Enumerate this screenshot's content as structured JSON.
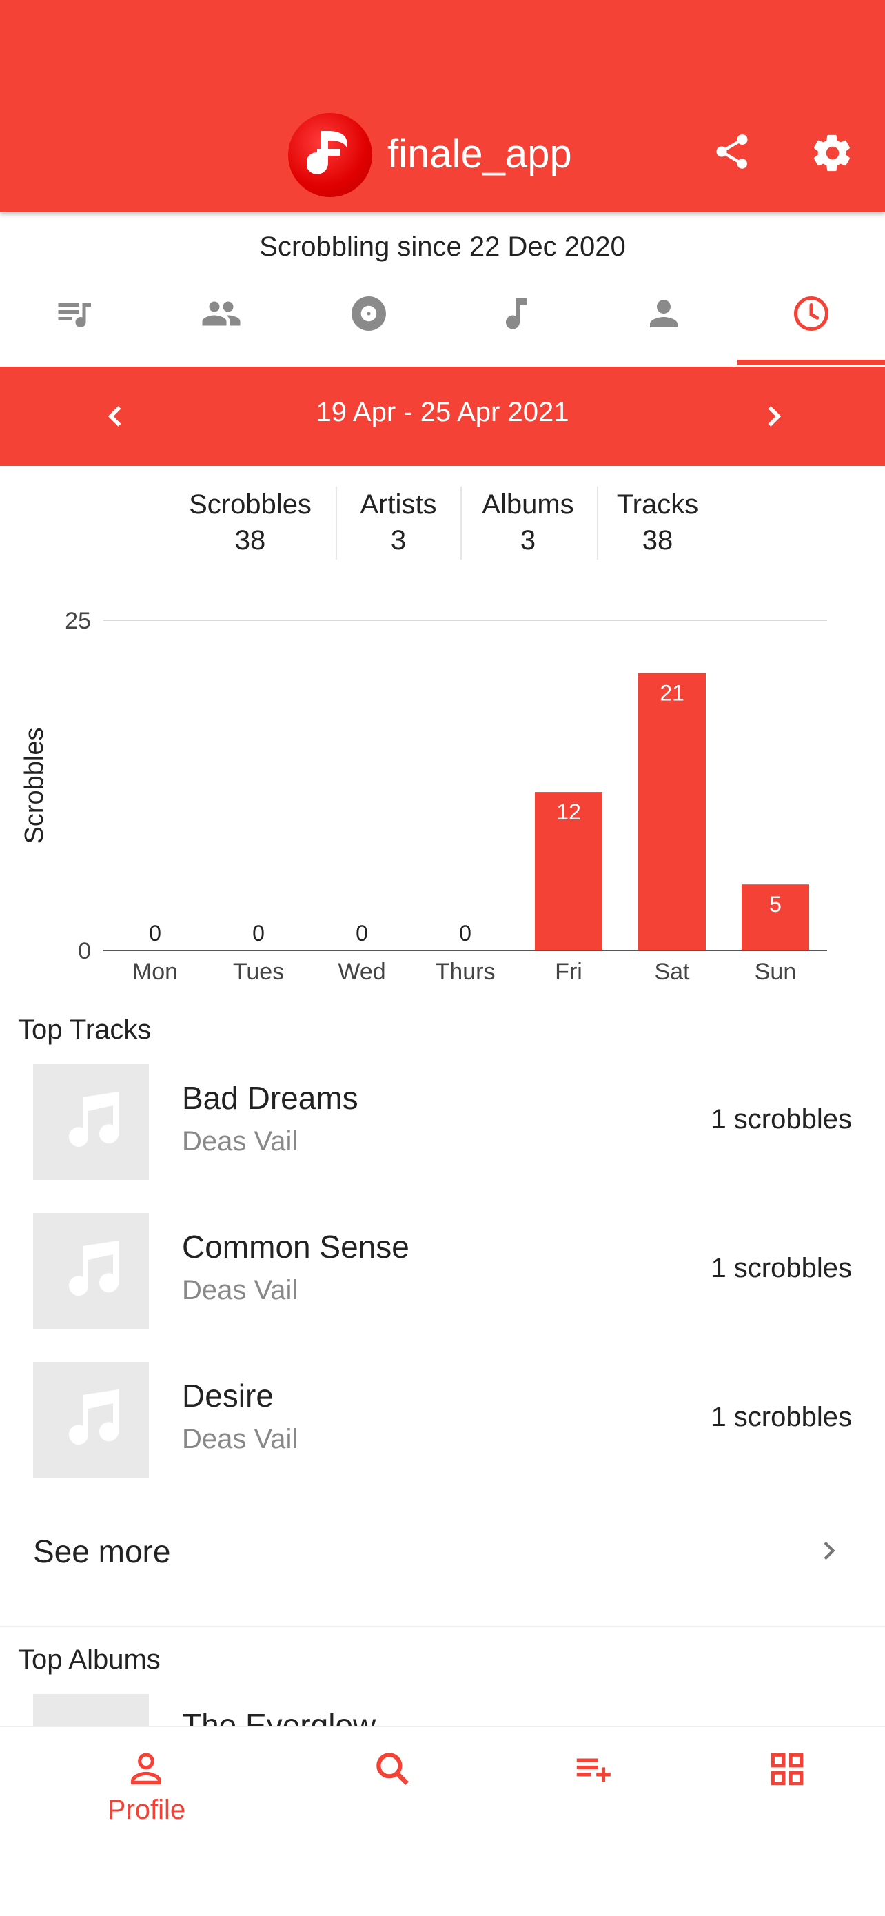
{
  "app": {
    "title": "finale_app"
  },
  "header": {
    "since": "Scrobbling since 22 Dec 2020"
  },
  "tabs": [
    {
      "icon": "queue-music-icon"
    },
    {
      "icon": "people-icon"
    },
    {
      "icon": "album-icon"
    },
    {
      "icon": "music-note-icon"
    },
    {
      "icon": "person-icon"
    },
    {
      "icon": "clock-icon",
      "active": true
    }
  ],
  "range": {
    "label": "19 Apr - 25 Apr 2021"
  },
  "stats": [
    {
      "label": "Scrobbles",
      "value": "38"
    },
    {
      "label": "Artists",
      "value": "3"
    },
    {
      "label": "Albums",
      "value": "3"
    },
    {
      "label": "Tracks",
      "value": "38"
    }
  ],
  "chart_data": {
    "type": "bar",
    "categories": [
      "Mon",
      "Tues",
      "Wed",
      "Thurs",
      "Fri",
      "Sat",
      "Sun"
    ],
    "values": [
      0,
      0,
      0,
      0,
      12,
      21,
      5
    ],
    "ylabel": "Scrobbles",
    "ylim": [
      0,
      25
    ],
    "yticks": [
      "0",
      "25"
    ],
    "color": "#f44336"
  },
  "top_tracks": {
    "title": "Top Tracks",
    "items": [
      {
        "name": "Bad Dreams",
        "artist": "Deas Vail",
        "count": "1 scrobbles"
      },
      {
        "name": "Common Sense",
        "artist": "Deas Vail",
        "count": "1 scrobbles"
      },
      {
        "name": "Desire",
        "artist": "Deas Vail",
        "count": "1 scrobbles"
      }
    ],
    "see_more": "See more"
  },
  "top_albums": {
    "title": "Top Albums",
    "first_name": "The Everglow"
  },
  "bottom_nav": {
    "profile": "Profile"
  },
  "colors": {
    "accent": "#f44336"
  }
}
